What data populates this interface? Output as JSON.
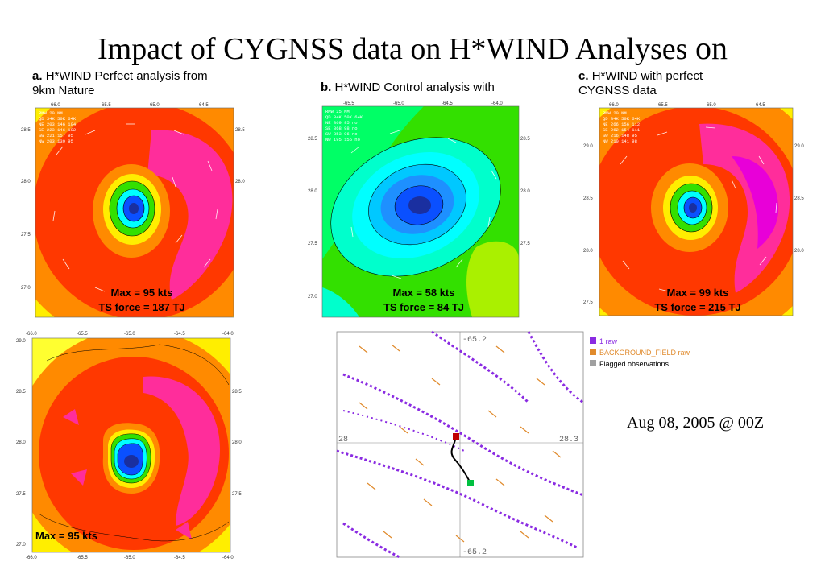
{
  "slide": {
    "title": "Impact of CYGNSS data on H*WIND Analyses",
    "title_suffix": "on",
    "date": "Aug 08, 2005 @ 00Z"
  },
  "panels": {
    "a": {
      "letter": "a.",
      "caption_line1": "H*WIND Perfect analysis from",
      "caption_line2": "9km Nature",
      "max_label": "Max = 95 kts",
      "ts_label": "TS force = 187 TJ",
      "xticks": [
        "-66.0",
        "-65.5",
        "-65.0",
        "-64.5"
      ],
      "yticks": [
        "28.5",
        "28.0",
        "27.5",
        "27.0"
      ],
      "table": [
        "RMW  20 NM",
        "QD  34K 50K 64K",
        "NE 203 146 104",
        "SE 223 146 102",
        "SW 221 157  95",
        "NW 203 139  95"
      ]
    },
    "b": {
      "letter": "b.",
      "caption_line1": "H*WIND Control analysis with",
      "max_label": "Max = 58 kts",
      "ts_label": "TS force = 84 TJ",
      "xticks": [
        "-65.5",
        "-65.0",
        "-64.5",
        "-64.0"
      ],
      "yticks": [
        "28.5",
        "28.0",
        "27.5",
        "27.0"
      ],
      "table": [
        "RMW  25 NM",
        "QD  34K 50K 64K",
        "NE 369  95  no",
        "SE 368  98  no",
        "SW 353  96  no",
        "NW 195 155  no"
      ]
    },
    "c": {
      "letter": "c.",
      "caption_line1": "H*WIND with perfect",
      "caption_line2": "CYGNSS data",
      "max_label": "Max = 99 kts",
      "ts_label": "TS force = 215 TJ",
      "xticks": [
        "-66.0",
        "-65.5",
        "-65.0",
        "-64.5"
      ],
      "yticks": [
        "29.0",
        "28.5",
        "28.0",
        "27.5"
      ],
      "table": [
        "RMW  20 NM",
        "QD  34K 50K 64K",
        "NE 266 156 112",
        "SE 262 154 111",
        "SW 216 148  95",
        "NW 210 141  98"
      ]
    },
    "d": {
      "max_label": "Max = 95 kts",
      "xticks_top": [
        "-66.0",
        "-65.5",
        "-65.0",
        "-64.5",
        "-64.0"
      ],
      "xticks_bottom": [
        "-66.0",
        "-65.5",
        "-65.0",
        "-64.5",
        "-64.0"
      ],
      "yticks": [
        "29.0",
        "28.5",
        "28.0",
        "27.5",
        "27.0"
      ]
    },
    "e": {
      "grid_labels": [
        "-65.2",
        "28.3",
        "-65.2",
        "28"
      ],
      "legend": [
        {
          "label": "1 raw",
          "color": "#8a2be2"
        },
        {
          "label": "BACKGROUND_FIELD raw",
          "color": "#e08a2c"
        },
        {
          "label": "Flagged observations",
          "color": "#a0a0a0"
        }
      ]
    }
  },
  "colors": {
    "magenta": "#ff2d9b",
    "red": "#ff3800",
    "orange": "#ff8a00",
    "yellow": "#ffee00",
    "green": "#33e000",
    "cyan": "#00ffff",
    "blue": "#0a50ff",
    "navy": "#1a2fa0"
  }
}
